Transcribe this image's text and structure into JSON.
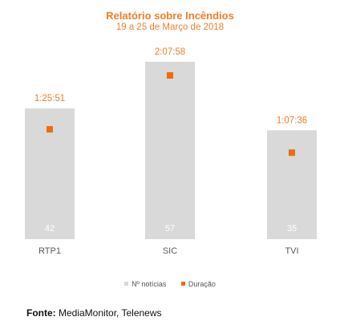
{
  "chart_data": {
    "type": "bar",
    "title": "Relatório sobre Incêndios",
    "subtitle": "19 a 25 de Março de 2018",
    "categories": [
      "RTP1",
      "SIC",
      "TVI"
    ],
    "series": [
      {
        "name": "Nº notícias",
        "type": "bar",
        "values": [
          42,
          57,
          35
        ],
        "data_labels": [
          "42",
          "57",
          "35"
        ],
        "color": "#d9d9d9"
      },
      {
        "name": "Duração",
        "type": "scatter",
        "values": [
          "1:25:51",
          "2:07:58",
          "1:07:36"
        ],
        "values_seconds": [
          5151,
          7678,
          4056
        ],
        "data_labels": [
          "1:25:51",
          "2:07:58",
          "1:07:36"
        ],
        "color": "#f06a0f"
      }
    ],
    "legend_position": "bottom",
    "grid": false
  },
  "source": {
    "label": "Fonte:",
    "text": "MediaMonitor, Telenews"
  }
}
